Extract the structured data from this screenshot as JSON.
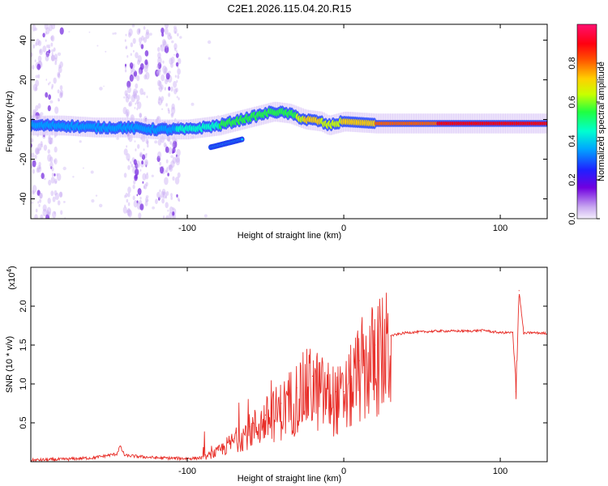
{
  "figure_title": "C2E1.2026.115.04.20.R15",
  "chart_data": [
    {
      "type": "heatmap",
      "title": "C2E1.2026.115.04.20.R15",
      "xlabel": "Height of straight line (km)",
      "ylabel": "Frequency (Hz)",
      "xlim": [
        -200,
        130
      ],
      "ylim": [
        -50,
        48
      ],
      "xticks": [
        -100,
        0,
        100
      ],
      "xtick_labels": [
        "-100",
        "0",
        "100"
      ],
      "yticks": [
        -40,
        -20,
        0,
        20,
        40
      ],
      "ytick_labels": [
        "-40",
        "-20",
        "0",
        "20",
        "40"
      ],
      "colorbar": {
        "label": "Normalized spectral amplitude",
        "range": [
          0,
          1
        ],
        "ticks": [
          0.0,
          0.2,
          0.4,
          0.6,
          0.8
        ],
        "tick_labels": [
          "0.0",
          "0.2",
          "0.4",
          "0.6",
          "0.8"
        ],
        "colormap": [
          "#e0d4f6",
          "#6000e0",
          "#2020ff",
          "#00a0ff",
          "#00ffc8",
          "#20ff40",
          "#c8ff00",
          "#ffd000",
          "#ff6000",
          "#ff0000",
          "#ff0080"
        ]
      },
      "ridge": {
        "x": [
          -200,
          -180,
          -160,
          -140,
          -120,
          -110,
          -100,
          -80,
          -60,
          -45,
          -35,
          -25,
          -15,
          -10,
          -5,
          0,
          20,
          60,
          100,
          130
        ],
        "freq": [
          -3,
          -3,
          -4,
          -4,
          -5,
          -5,
          -5,
          -3,
          1,
          4,
          3,
          0,
          -1,
          -3,
          -2,
          -1,
          -2,
          -2,
          -2,
          -2
        ],
        "amplitude": [
          0.35,
          0.38,
          0.4,
          0.35,
          0.3,
          0.38,
          0.45,
          0.5,
          0.55,
          0.55,
          0.5,
          0.7,
          0.7,
          0.6,
          0.6,
          0.75,
          0.8,
          0.9,
          0.95,
          0.95
        ]
      },
      "secondary_ridge": {
        "x": [
          -85,
          -75,
          -65
        ],
        "freq": [
          -14,
          -12,
          -10
        ],
        "amplitude": [
          0.4,
          0.45,
          0.5
        ]
      },
      "noise_bands_x": [
        [
          -200,
          -180
        ],
        [
          -140,
          -125
        ],
        [
          -120,
          -105
        ]
      ]
    },
    {
      "type": "line",
      "xlabel": "Height of straight line (km)",
      "ylabel": "SNR (10 * v/v)",
      "y_multiplier": "(x10",
      "y_multiplier_exp": "4",
      "y_multiplier_close": ")",
      "xlim": [
        -200,
        130
      ],
      "ylim": [
        0,
        2.5
      ],
      "xticks": [
        -100,
        0,
        100
      ],
      "xtick_labels": [
        "-100",
        "0",
        "100"
      ],
      "yticks": [
        0.5,
        1.0,
        1.5,
        2.0
      ],
      "ytick_labels": [
        "0.5",
        "1.0",
        "1.5",
        "2.0"
      ],
      "color": "#e8302a",
      "series": [
        {
          "name": "SNR",
          "x": [
            -200,
            -180,
            -160,
            -145,
            -143,
            -140,
            -120,
            -100,
            -90,
            -80,
            -70,
            -60,
            -50,
            -40,
            -30,
            -20,
            -15,
            -10,
            -5,
            0,
            5,
            10,
            20,
            30,
            40,
            60,
            80,
            90,
            95,
            100,
            108,
            110,
            112,
            115,
            120,
            130
          ],
          "y": [
            0.02,
            0.03,
            0.05,
            0.1,
            0.2,
            0.08,
            0.05,
            0.04,
            0.05,
            0.15,
            0.3,
            0.45,
            0.6,
            0.75,
            0.95,
            1.1,
            1.0,
            0.95,
            0.9,
            0.9,
            1.1,
            1.3,
            1.5,
            1.62,
            1.66,
            1.68,
            1.68,
            1.69,
            1.67,
            1.66,
            1.66,
            0.9,
            2.2,
            1.65,
            1.66,
            1.65
          ]
        }
      ]
    }
  ]
}
